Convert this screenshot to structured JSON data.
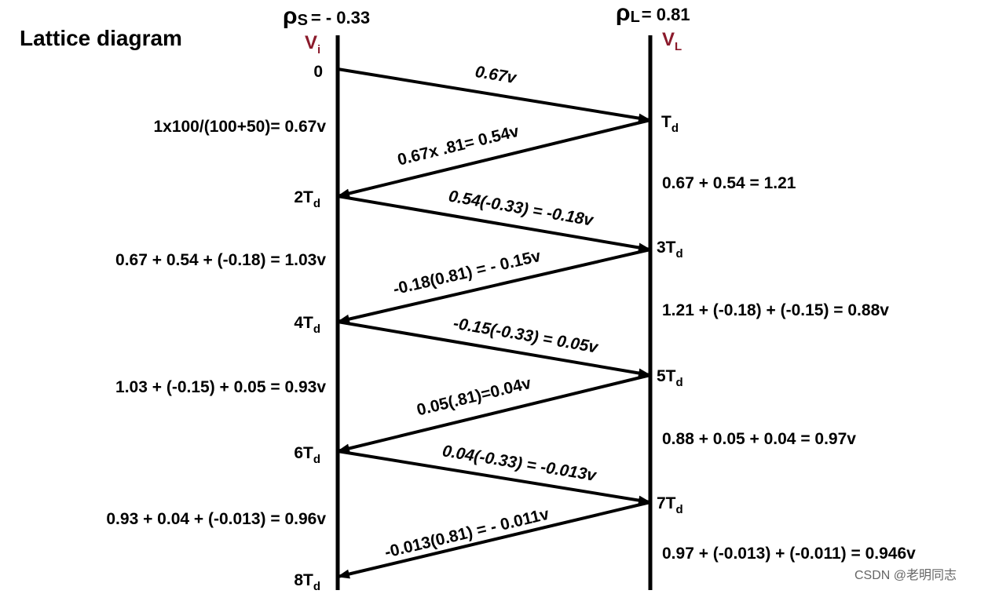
{
  "title": "Lattice diagram",
  "source": {
    "rho_symbol": "ρ",
    "rho_sub": "S",
    "rho_value": "= - 0.33",
    "v_label": "V",
    "v_sub": "i"
  },
  "load": {
    "rho_symbol": "ρ",
    "rho_sub": "L",
    "rho_value": "= 0.81",
    "v_label": "V",
    "v_sub": "L"
  },
  "left_ticks": [
    {
      "main": "0",
      "sub": ""
    },
    {
      "main": "2T",
      "sub": "d"
    },
    {
      "main": "4T",
      "sub": "d"
    },
    {
      "main": "6T",
      "sub": "d"
    },
    {
      "main": "8T",
      "sub": "d"
    }
  ],
  "right_ticks": [
    {
      "main": "T",
      "sub": "d"
    },
    {
      "main": "3T",
      "sub": "d"
    },
    {
      "main": "5T",
      "sub": "d"
    },
    {
      "main": "7T",
      "sub": "d"
    }
  ],
  "arrow_labels": [
    "0.67v",
    "0.67x .81= 0.54v",
    "0.54(-0.33) = -0.18v",
    "-0.18(0.81) = - 0.15v",
    "-0.15(-0.33) = 0.05v",
    "0.05(.81)=0.04v",
    "0.04(-0.33) = -0.013v",
    "-0.013(0.81) = - 0.011v"
  ],
  "left_calcs": [
    "1x100/(100+50)= 0.67v",
    "0.67 + 0.54 + (-0.18) = 1.03v",
    "1.03 + (-0.15) + 0.05 = 0.93v",
    "0.93 + 0.04 + (-0.013) = 0.96v"
  ],
  "right_calcs": [
    "0.67 + 0.54 = 1.21",
    "1.21 + (-0.18) + (-0.15) = 0.88v",
    "0.88 + 0.05 + 0.04 = 0.97v",
    "0.97 + (-0.013) + (-0.011) = 0.946v"
  ],
  "watermark": "CSDN @老明同志",
  "colors": {
    "line": "#000000",
    "voltage_label": "#8b1a2b"
  }
}
